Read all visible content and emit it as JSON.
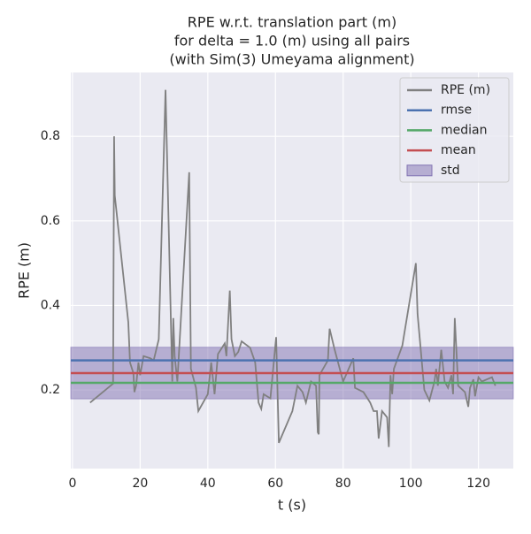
{
  "chart_data": {
    "type": "line",
    "title": [
      "RPE w.r.t. translation part (m)",
      "for delta = 1.0 (m) using all pairs",
      "(with Sim(3) Umeyama alignment)"
    ],
    "xlabel": "t (s)",
    "ylabel": "RPE (m)",
    "xlim": [
      -0.5,
      130.3
    ],
    "ylim": [
      0.014,
      0.951
    ],
    "xticks": [
      0,
      20,
      40,
      60,
      80,
      100,
      120
    ],
    "yticks": [
      0.2,
      0.4,
      0.6,
      0.8
    ],
    "grid": true,
    "legend": "upper right",
    "x": [
      5.2,
      12,
      12.3,
      12.5,
      16.5,
      17,
      18,
      18.3,
      18.8,
      19.5,
      20,
      21,
      23,
      24,
      25.5,
      27.5,
      29.5,
      29.8,
      30.2,
      31,
      34.5,
      35,
      36.5,
      37.2,
      40,
      41,
      42,
      43,
      45,
      45.5,
      46.5,
      47,
      48,
      49,
      50,
      52.5,
      54,
      55,
      55.8,
      56.5,
      58.5,
      60.2,
      61,
      65,
      66.5,
      68,
      69,
      70.5,
      72,
      72.5,
      72.8,
      73,
      75.5,
      76,
      77.5,
      80,
      83,
      83.5,
      86,
      88,
      89,
      90,
      90.5,
      91.5,
      93,
      93.5,
      94,
      94.5,
      95,
      97.5,
      101.5,
      102,
      104,
      105.5,
      107,
      107.5,
      108,
      109,
      110,
      111,
      112,
      112.5,
      113,
      114,
      116,
      117,
      117.5,
      118.5,
      119,
      120,
      121,
      124,
      125
    ],
    "series": [
      {
        "name": "RPE (m)",
        "color": "#808080",
        "values": [
          0.17,
          0.215,
          0.8,
          0.66,
          0.36,
          0.265,
          0.24,
          0.195,
          0.21,
          0.265,
          0.235,
          0.28,
          0.275,
          0.27,
          0.32,
          0.91,
          0.22,
          0.37,
          0.28,
          0.22,
          0.715,
          0.25,
          0.205,
          0.15,
          0.19,
          0.265,
          0.19,
          0.285,
          0.31,
          0.28,
          0.435,
          0.32,
          0.28,
          0.29,
          0.315,
          0.3,
          0.265,
          0.17,
          0.155,
          0.19,
          0.18,
          0.325,
          0.075,
          0.15,
          0.21,
          0.195,
          0.17,
          0.22,
          0.21,
          0.1,
          0.095,
          0.235,
          0.27,
          0.345,
          0.295,
          0.22,
          0.275,
          0.205,
          0.195,
          0.17,
          0.15,
          0.15,
          0.085,
          0.15,
          0.135,
          0.065,
          0.235,
          0.19,
          0.25,
          0.305,
          0.5,
          0.38,
          0.2,
          0.175,
          0.22,
          0.25,
          0.21,
          0.295,
          0.22,
          0.205,
          0.235,
          0.19,
          0.37,
          0.21,
          0.195,
          0.16,
          0.205,
          0.225,
          0.185,
          0.23,
          0.22,
          0.23,
          0.21
        ]
      }
    ],
    "lines": [
      {
        "name": "rmse",
        "color": "#4c72b0",
        "value": 0.27
      },
      {
        "name": "median",
        "color": "#55a868",
        "value": 0.217
      },
      {
        "name": "mean",
        "color": "#c44e52",
        "value": 0.24
      }
    ],
    "std": {
      "name": "std",
      "color": "#8172b2",
      "value": 0.061
    }
  }
}
